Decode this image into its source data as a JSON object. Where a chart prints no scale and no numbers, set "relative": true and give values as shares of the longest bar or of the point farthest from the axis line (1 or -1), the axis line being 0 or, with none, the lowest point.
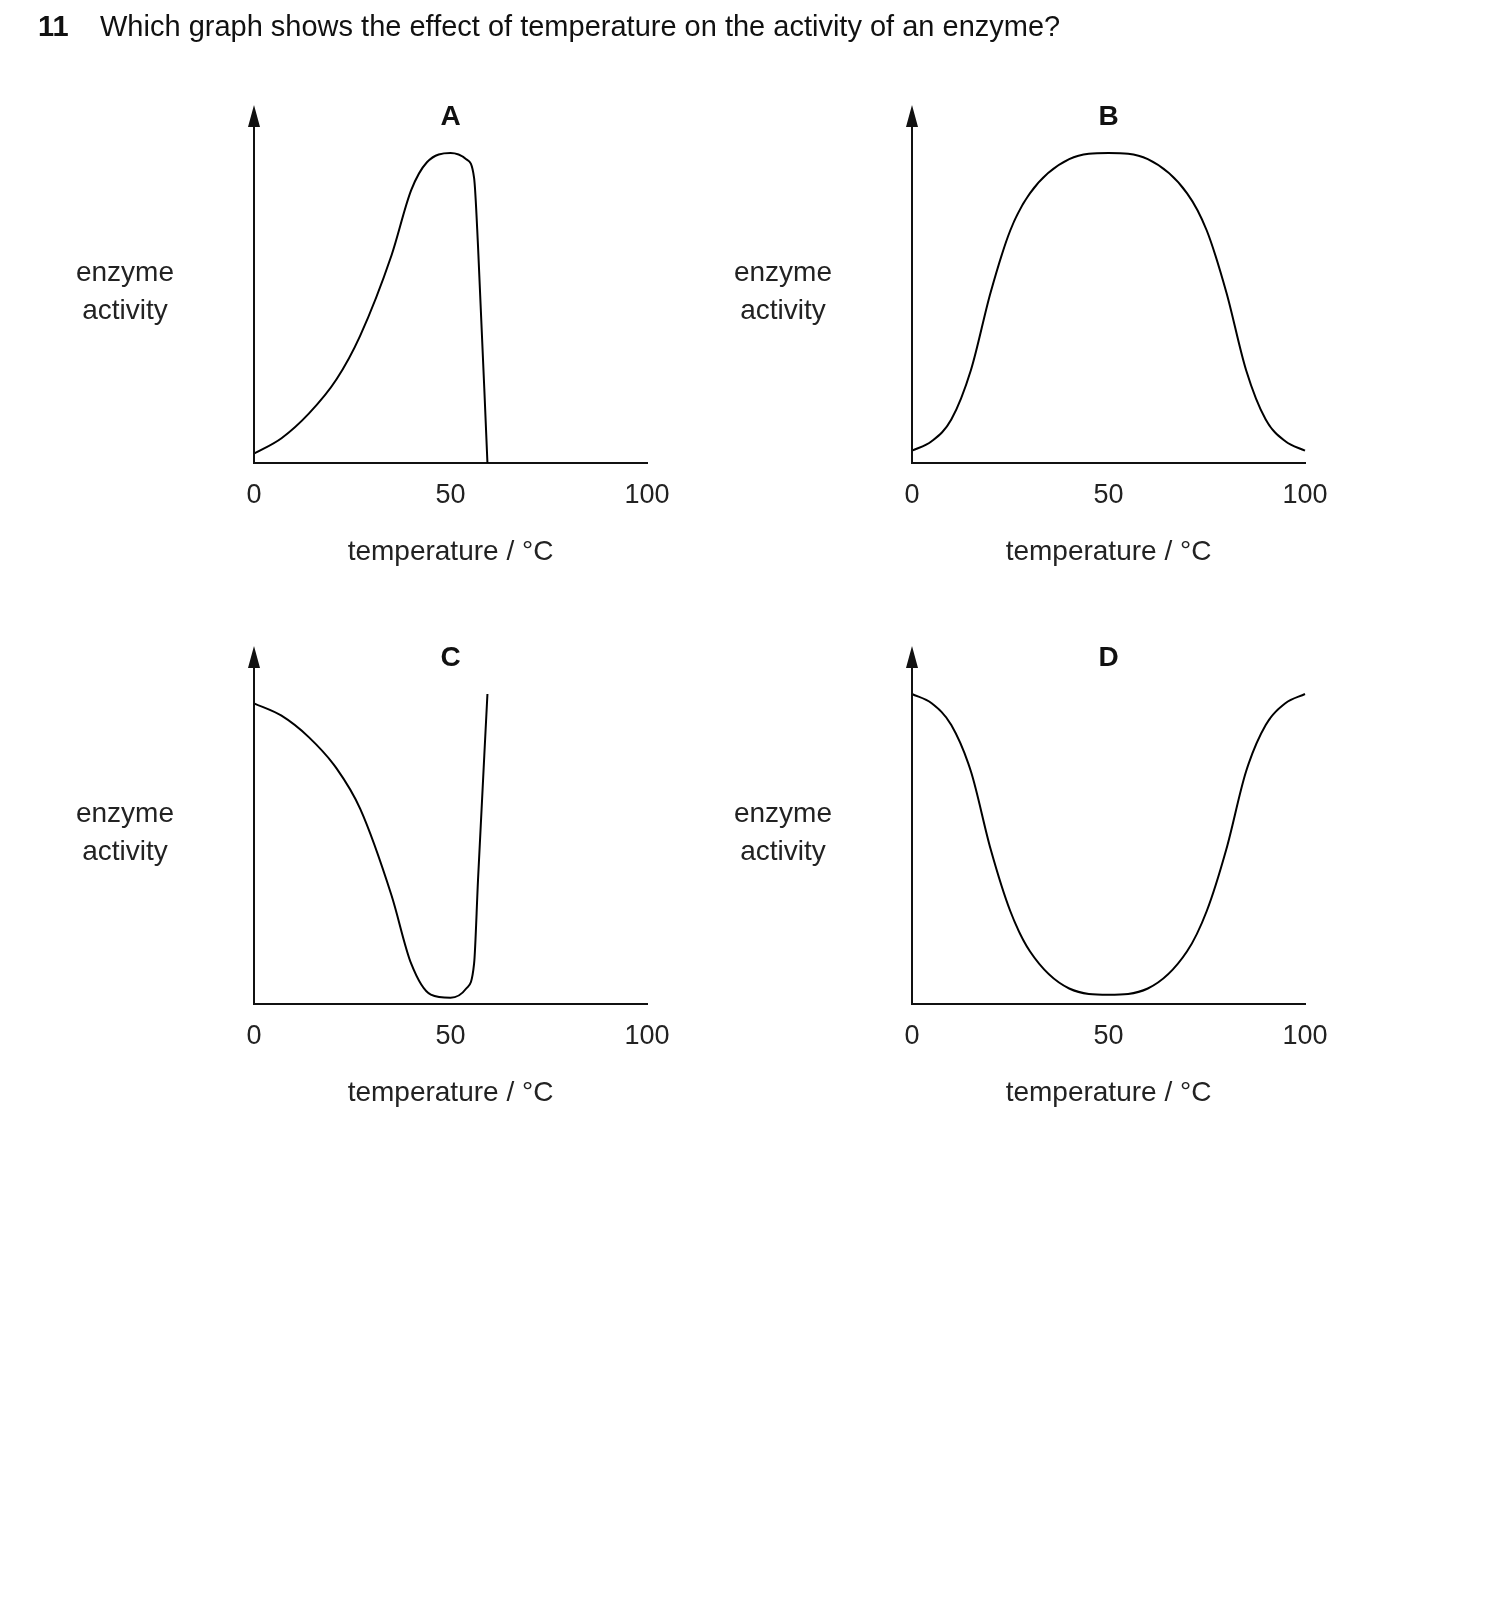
{
  "chart_data": [
    {
      "type": "line",
      "title": "A",
      "xlabel": "temperature / °C",
      "ylabel": "enzyme activity",
      "relative": true,
      "xlim": [
        0,
        100
      ],
      "xticks": [
        0,
        50,
        100
      ],
      "grid": false,
      "legend": false,
      "marker": "none",
      "annotations": [
        "11",
        "Which graph shows the effect of temperature on the activity of an enzyme?"
      ],
      "series": [
        {
          "color": "#000000",
          "x": [
            0,
            7,
            14,
            21,
            27,
            35,
            40,
            44,
            50,
            54,
            56,
            57,
            59.4
          ],
          "values": [
            0.03,
            0.08,
            0.16,
            0.27,
            0.41,
            0.67,
            0.88,
            0.97,
            1,
            0.98,
            0.92,
            0.7,
            0
          ]
        }
      ]
    },
    {
      "type": "line",
      "title": "B",
      "xlabel": "temperature / °C",
      "ylabel": "enzyme activity",
      "relative": true,
      "xlim": [
        0,
        100
      ],
      "xticks": [
        0,
        50,
        100
      ],
      "grid": false,
      "legend": false,
      "marker": "none",
      "series": [
        {
          "color": "#000000",
          "x": [
            0,
            5,
            10,
            15,
            20,
            25,
            30,
            40,
            50,
            60,
            70,
            75,
            80,
            85,
            90,
            95,
            100
          ],
          "values": [
            0.04,
            0.07,
            0.14,
            0.3,
            0.55,
            0.75,
            0.87,
            0.98,
            1,
            0.98,
            0.87,
            0.75,
            0.55,
            0.3,
            0.14,
            0.07,
            0.04
          ]
        }
      ]
    },
    {
      "type": "line",
      "title": "C",
      "xlabel": "temperature / °C",
      "ylabel": "enzyme activity",
      "relative": true,
      "xlim": [
        0,
        100
      ],
      "xticks": [
        0,
        50,
        100
      ],
      "grid": false,
      "legend": false,
      "marker": "none",
      "series": [
        {
          "color": "#000000",
          "x": [
            0,
            7,
            14,
            21,
            27,
            35,
            40,
            45,
            50,
            54,
            56,
            57,
            59.4
          ],
          "values": [
            0.97,
            0.93,
            0.86,
            0.76,
            0.63,
            0.35,
            0.13,
            0.03,
            0.02,
            0.05,
            0.13,
            0.4,
            1
          ]
        }
      ]
    },
    {
      "type": "line",
      "title": "D",
      "xlabel": "temperature / °C",
      "ylabel": "enzyme activity",
      "relative": true,
      "xlim": [
        0,
        100
      ],
      "xticks": [
        0,
        50,
        100
      ],
      "grid": false,
      "legend": false,
      "marker": "none",
      "series": [
        {
          "color": "#000000",
          "x": [
            0,
            5,
            10,
            15,
            20,
            25,
            30,
            40,
            50,
            60,
            70,
            75,
            80,
            85,
            90,
            95,
            100
          ],
          "values": [
            1,
            0.97,
            0.9,
            0.75,
            0.5,
            0.3,
            0.17,
            0.05,
            0.03,
            0.05,
            0.17,
            0.3,
            0.5,
            0.75,
            0.9,
            0.97,
            1
          ]
        }
      ]
    }
  ]
}
